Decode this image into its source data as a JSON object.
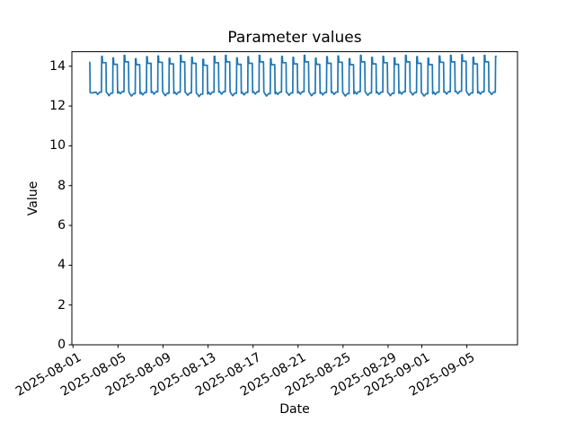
{
  "chart_data": {
    "type": "line",
    "title": "Parameter values",
    "xlabel": "Date",
    "ylabel": "Value",
    "background_color": "#ffffff",
    "axis_color": "#000000",
    "line_color": "#1f77b4",
    "grid": false,
    "legend": null,
    "x_start_date": "2025-08-01",
    "x_tick_labels": [
      "2025-08-01",
      "2025-08-05",
      "2025-08-09",
      "2025-08-13",
      "2025-08-17",
      "2025-08-21",
      "2025-08-25",
      "2025-08-29",
      "2025-09-01",
      "2025-09-05"
    ],
    "x_tick_day_offsets": [
      0,
      4,
      8,
      12,
      16,
      20,
      24,
      28,
      31,
      35
    ],
    "y_tick_labels": [
      "0",
      "2",
      "4",
      "6",
      "8",
      "10",
      "12",
      "14"
    ],
    "y_ticks": [
      0,
      2,
      4,
      6,
      8,
      10,
      12,
      14
    ],
    "xlim_days": [
      -0.1,
      39.5
    ],
    "ylim": [
      0,
      14.73
    ],
    "series": [
      {
        "name": "Parameter values",
        "description": "Daily square-wave oscillation between ~12.6 and ~14.5",
        "start_day_offset": 2,
        "rise_fraction": 0.55,
        "lead_in_points": [
          [
            1.5,
            14.2
          ],
          [
            1.52,
            12.68
          ],
          [
            1.72,
            12.66
          ]
        ],
        "intra_day_pattern": [
          [
            -0.5,
            "low"
          ],
          [
            -0.35,
            "notch"
          ],
          [
            -0.18,
            "low"
          ],
          [
            -0.02,
            "low"
          ],
          [
            0.0,
            "peak"
          ],
          [
            0.05,
            "peak"
          ],
          [
            0.08,
            "plateau"
          ],
          [
            0.22,
            "plateau"
          ],
          [
            0.38,
            "plateau"
          ],
          [
            0.41,
            "low"
          ]
        ],
        "last_day_pattern_cutoff": 0.06,
        "daily_values": {
          "peak": [
            14.5,
            14.42,
            14.55,
            14.38,
            14.48,
            14.52,
            14.4,
            14.55,
            14.45,
            14.35,
            14.5,
            14.55,
            14.42,
            14.48,
            14.55,
            14.38,
            14.5,
            14.45,
            14.55,
            14.4,
            14.48,
            14.52,
            14.38,
            14.55,
            14.45,
            14.5,
            14.42,
            14.55,
            14.48,
            14.4,
            14.52,
            14.55,
            14.58,
            14.45,
            14.55,
            14.5
          ],
          "plateau": [
            14.18,
            14.1,
            14.22,
            14.08,
            14.15,
            14.2,
            14.12,
            14.22,
            14.15,
            14.05,
            14.18,
            14.22,
            14.1,
            14.15,
            14.22,
            14.08,
            14.18,
            14.12,
            14.22,
            14.1,
            14.15,
            14.2,
            14.08,
            14.22,
            14.12,
            14.18,
            14.1,
            14.22,
            14.15,
            14.08,
            14.2,
            14.22,
            14.25,
            14.12,
            14.22,
            14.18
          ],
          "low": [
            12.7,
            12.65,
            12.72,
            12.62,
            12.68,
            12.72,
            12.64,
            12.7,
            12.66,
            12.6,
            12.7,
            12.72,
            12.64,
            12.68,
            12.72,
            12.62,
            12.7,
            12.66,
            12.72,
            12.64,
            12.68,
            12.7,
            12.62,
            12.72,
            12.66,
            12.7,
            12.64,
            12.72,
            12.68,
            12.62,
            12.7,
            12.72,
            12.74,
            12.66,
            12.72,
            12.7
          ],
          "notch": [
            12.58,
            12.52,
            12.62,
            12.5,
            12.56,
            12.6,
            12.52,
            12.58,
            12.54,
            12.48,
            12.58,
            12.6,
            12.52,
            12.56,
            12.6,
            12.5,
            12.58,
            12.54,
            12.6,
            12.52,
            12.56,
            12.58,
            12.5,
            12.6,
            12.54,
            12.58,
            12.52,
            12.6,
            12.56,
            12.5,
            12.58,
            12.6,
            12.62,
            12.54,
            12.6,
            12.58
          ]
        }
      }
    ]
  }
}
